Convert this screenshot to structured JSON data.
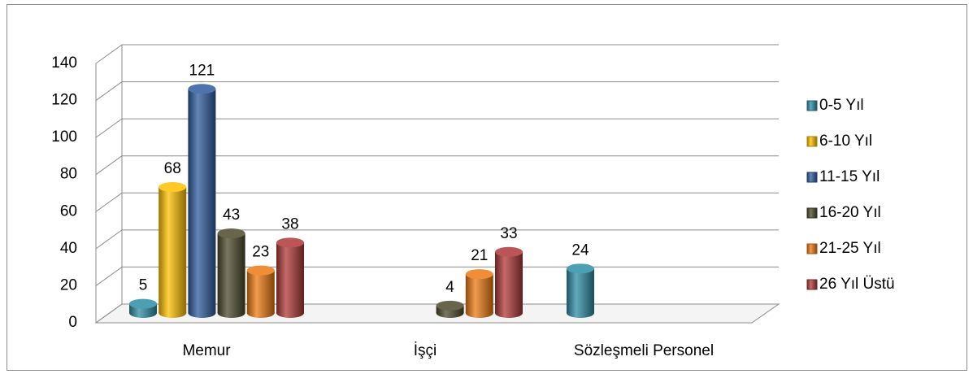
{
  "chart_data": {
    "type": "bar3d",
    "categories": [
      "Memur",
      "İşçi",
      "Sözleşmeli Personel"
    ],
    "series": [
      {
        "name": "0-5 Yıl",
        "color": "#2e8ea6",
        "values": [
          5,
          null,
          24
        ]
      },
      {
        "name": "6-10 Yıl",
        "color": "#ffc000",
        "values": [
          68,
          null,
          null
        ]
      },
      {
        "name": "11-15 Yıl",
        "color": "#2f5c9f",
        "values": [
          121,
          null,
          null
        ]
      },
      {
        "name": "16-20 Yıl",
        "color": "#4d4a2c",
        "values": [
          43,
          4,
          null
        ]
      },
      {
        "name": "21-25 Yıl",
        "color": "#ec7a12",
        "values": [
          23,
          21,
          null
        ]
      },
      {
        "name": "26 Yıl Üstü",
        "color": "#b03838",
        "values": [
          38,
          33,
          null
        ]
      }
    ],
    "ylim": [
      0,
      140
    ],
    "yticks": [
      0,
      20,
      40,
      60,
      80,
      100,
      120,
      140
    ],
    "grid": true,
    "legend": "right"
  }
}
